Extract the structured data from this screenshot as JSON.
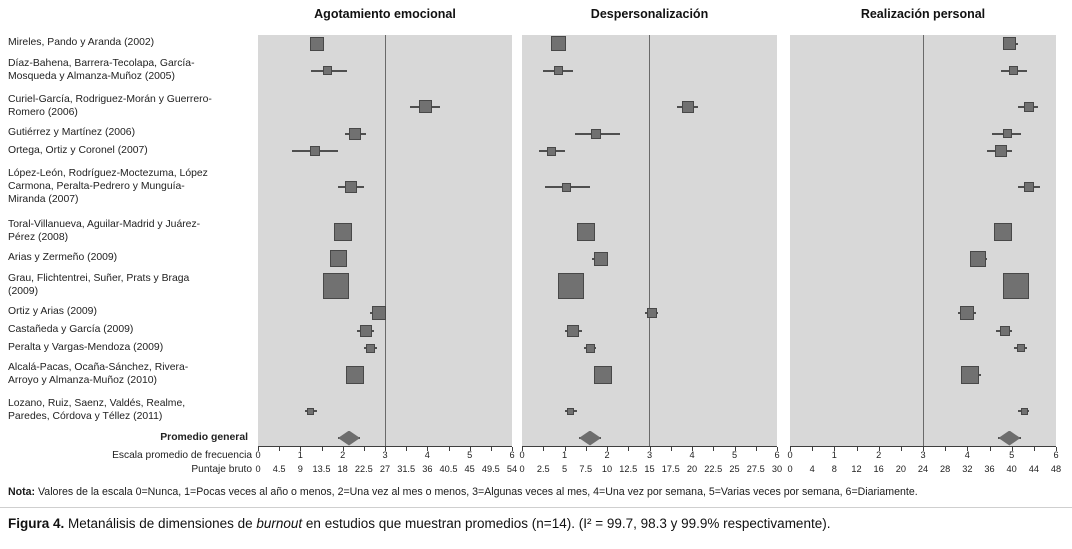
{
  "note": {
    "prefix": "Nota:",
    "text": " Valores de la escala 0=Nunca, 1=Pocas veces al año o menos, 2=Una vez al mes o menos, 3=Algunas veces al mes, 4=Una vez por semana, 5=Varias veces por semana, 6=Diariamente."
  },
  "caption": {
    "prefix": "Figura 4.",
    "text1": " Metanálisis de dimensiones de ",
    "italic": "burnout",
    "text2": " en estudios que muestran promedios (n=14). (I² = 99.7, 98.3 y 99.9% respectivamente)."
  },
  "chart_data": {
    "type": "forest",
    "x_scale": {
      "escala_label": "Escala promedio de frecuencia",
      "bruto_label": "Puntaje bruto",
      "range": [
        0,
        6
      ],
      "reference_line": 3
    },
    "escala_ticks": [
      "0",
      "1",
      "2",
      "3",
      "4",
      "5",
      "6"
    ],
    "panels": [
      {
        "title": "Agotamiento emocional",
        "bruto_ticks": [
          "0",
          "4.5",
          "9",
          "13.5",
          "18",
          "22.5",
          "27",
          "31.5",
          "36",
          "40.5",
          "45",
          "49.5",
          "54"
        ]
      },
      {
        "title": "Despersonalización",
        "bruto_ticks": [
          "0",
          "2.5",
          "5",
          "7.5",
          "10",
          "12.5",
          "15",
          "17.5",
          "20",
          "22.5",
          "25",
          "27.5",
          "30"
        ]
      },
      {
        "title": "Realización personal",
        "bruto_ticks": [
          "0",
          "4",
          "8",
          "12",
          "16",
          "20",
          "24",
          "28",
          "32",
          "36",
          "40",
          "44",
          "48"
        ]
      }
    ],
    "studies": [
      {
        "label": "Mireles, Pando y Aranda (2002)",
        "label_lines": 1,
        "estimates": [
          {
            "value": 1.4,
            "ci": [
              1.25,
              1.55
            ],
            "size": 14
          },
          {
            "value": 0.85,
            "ci": [
              0.7,
              1.0
            ],
            "size": 15
          },
          {
            "value": 4.95,
            "ci": [
              4.8,
              5.15
            ],
            "size": 13
          }
        ]
      },
      {
        "label": "Díaz-Bahena, Barrera-Tecolapa, García-Mosqueda y Almanza-Muñoz (2005)",
        "label_lines": 2,
        "estimates": [
          {
            "value": 1.65,
            "ci": [
              1.25,
              2.1
            ],
            "size": 9
          },
          {
            "value": 0.85,
            "ci": [
              0.5,
              1.2
            ],
            "size": 9
          },
          {
            "value": 5.05,
            "ci": [
              4.75,
              5.35
            ],
            "size": 9
          }
        ]
      },
      {
        "label": "Curiel-García, Rodriguez-Morán y Guerrero-Romero (2006)",
        "label_lines": 2,
        "estimates": [
          {
            "value": 3.95,
            "ci": [
              3.6,
              4.3
            ],
            "size": 13
          },
          {
            "value": 3.9,
            "ci": [
              3.65,
              4.15
            ],
            "size": 12
          },
          {
            "value": 5.4,
            "ci": [
              5.15,
              5.6
            ],
            "size": 10
          }
        ]
      },
      {
        "label": "Gutiérrez y Martínez (2006)",
        "label_lines": 1,
        "estimates": [
          {
            "value": 2.3,
            "ci": [
              2.05,
              2.55
            ],
            "size": 12
          },
          {
            "value": 1.75,
            "ci": [
              1.25,
              2.3
            ],
            "size": 10
          },
          {
            "value": 4.9,
            "ci": [
              4.55,
              5.2
            ],
            "size": 9
          }
        ]
      },
      {
        "label": "Ortega, Ortiz y Coronel (2007)",
        "label_lines": 1,
        "estimates": [
          {
            "value": 1.35,
            "ci": [
              0.8,
              1.9
            ],
            "size": 10
          },
          {
            "value": 0.7,
            "ci": [
              0.4,
              1.0
            ],
            "size": 9
          },
          {
            "value": 4.75,
            "ci": [
              4.45,
              5.0
            ],
            "size": 12
          }
        ]
      },
      {
        "label": "López-León, Rodríguez-Moctezuma, López Carmona, Peralta-Pedrero y Munguía-Miranda (2007)",
        "label_lines": 3,
        "estimates": [
          {
            "value": 2.2,
            "ci": [
              1.9,
              2.5
            ],
            "size": 12
          },
          {
            "value": 1.05,
            "ci": [
              0.55,
              1.6
            ],
            "size": 9
          },
          {
            "value": 5.4,
            "ci": [
              5.15,
              5.65
            ],
            "size": 10
          }
        ]
      },
      {
        "label": "Toral-Villanueva, Aguilar-Madrid y Juárez-Pérez (2008)",
        "label_lines": 2,
        "estimates": [
          {
            "value": 2.0,
            "ci": [
              1.85,
              2.2
            ],
            "size": 18
          },
          {
            "value": 1.5,
            "ci": [
              1.3,
              1.65
            ],
            "size": 18
          },
          {
            "value": 4.8,
            "ci": [
              4.6,
              5.0
            ],
            "size": 18
          }
        ]
      },
      {
        "label": "Arias y Zermeño (2009)",
        "label_lines": 1,
        "estimates": [
          {
            "value": 1.9,
            "ci": [
              1.7,
              2.05
            ],
            "size": 17
          },
          {
            "value": 1.85,
            "ci": [
              1.65,
              2.0
            ],
            "size": 14
          },
          {
            "value": 4.25,
            "ci": [
              4.05,
              4.45
            ],
            "size": 16
          }
        ]
      },
      {
        "label": "Grau, Flichtentrei, Suñer, Prats y Braga (2009)",
        "label_lines": 2,
        "estimates": [
          {
            "value": 1.85,
            "ci": [
              1.7,
              2.0
            ],
            "size": 26
          },
          {
            "value": 1.15,
            "ci": [
              1.0,
              1.3
            ],
            "size": 26
          },
          {
            "value": 5.1,
            "ci": [
              4.95,
              5.25
            ],
            "size": 26
          }
        ]
      },
      {
        "label": "Ortiz y Arias (2009)",
        "label_lines": 1,
        "estimates": [
          {
            "value": 2.85,
            "ci": [
              2.65,
              3.0
            ],
            "size": 14
          },
          {
            "value": 3.05,
            "ci": [
              2.9,
              3.2
            ],
            "size": 10
          },
          {
            "value": 4.0,
            "ci": [
              3.8,
              4.2
            ],
            "size": 14
          }
        ]
      },
      {
        "label": "Castañeda y García (2009)",
        "label_lines": 1,
        "estimates": [
          {
            "value": 2.55,
            "ci": [
              2.35,
              2.75
            ],
            "size": 12
          },
          {
            "value": 1.2,
            "ci": [
              1.0,
              1.4
            ],
            "size": 12
          },
          {
            "value": 4.85,
            "ci": [
              4.65,
              5.0
            ],
            "size": 10
          }
        ]
      },
      {
        "label": "Peralta y Vargas-Mendoza (2009)",
        "label_lines": 1,
        "estimates": [
          {
            "value": 2.65,
            "ci": [
              2.5,
              2.8
            ],
            "size": 9
          },
          {
            "value": 1.6,
            "ci": [
              1.45,
              1.75
            ],
            "size": 9
          },
          {
            "value": 5.2,
            "ci": [
              5.05,
              5.35
            ],
            "size": 8
          }
        ]
      },
      {
        "label": "Alcalá-Pacas, Ocaña-Sánchez, Rivera-Arroyo y Almanza-Muñoz (2010)",
        "label_lines": 2,
        "estimates": [
          {
            "value": 2.3,
            "ci": [
              2.1,
              2.5
            ],
            "size": 18
          },
          {
            "value": 1.9,
            "ci": [
              1.7,
              2.1
            ],
            "size": 18
          },
          {
            "value": 4.05,
            "ci": [
              3.85,
              4.3
            ],
            "size": 18
          }
        ]
      },
      {
        "label": "Lozano, Ruiz, Saenz, Valdés, Realme, Paredes, Córdova y Téllez (2011)",
        "label_lines": 2,
        "estimates": [
          {
            "value": 1.25,
            "ci": [
              1.1,
              1.4
            ],
            "size": 7
          },
          {
            "value": 1.15,
            "ci": [
              1.0,
              1.3
            ],
            "size": 7
          },
          {
            "value": 5.3,
            "ci": [
              5.15,
              5.4
            ],
            "size": 7
          }
        ]
      },
      {
        "label": "Promedio general",
        "label_lines": 1,
        "bold": true,
        "shape": "diamond",
        "estimates": [
          {
            "value": 2.15,
            "ci": [
              1.9,
              2.4
            ],
            "size": 22
          },
          {
            "value": 1.6,
            "ci": [
              1.35,
              1.85
            ],
            "size": 22
          },
          {
            "value": 4.95,
            "ci": [
              4.7,
              5.2
            ],
            "size": 22
          }
        ]
      }
    ]
  }
}
